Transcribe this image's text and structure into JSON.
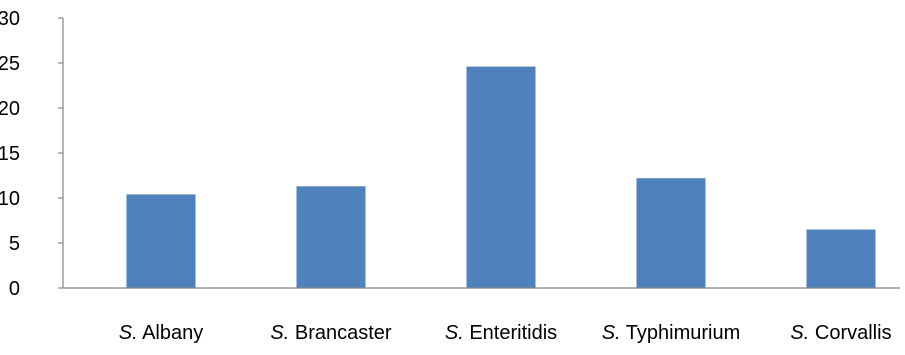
{
  "chart_data": {
    "type": "bar",
    "categories": [
      {
        "prefix": "S.",
        "name": "Albany"
      },
      {
        "prefix": "S.",
        "name": "Brancaster"
      },
      {
        "prefix": "S.",
        "name": "Enteritidis"
      },
      {
        "prefix": "S.",
        "name": "Typhimurium"
      },
      {
        "prefix": "S.",
        "name": "Corvallis"
      }
    ],
    "values": [
      10.4,
      11.3,
      24.6,
      12.2,
      6.5
    ],
    "ylim": [
      0,
      30
    ],
    "yticks": [
      0,
      5,
      10,
      15,
      20,
      25,
      30
    ],
    "title": "",
    "xlabel": "",
    "ylabel": "",
    "grid": false,
    "legend": "none",
    "bar_color": "#4f81bd",
    "axis_color": "#868686"
  }
}
